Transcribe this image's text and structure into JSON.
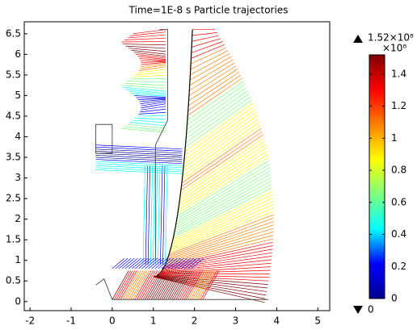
{
  "chart_data": {
    "type": "trajectory",
    "title": "Time=1E-8 s  Particle trajectories",
    "xlim": [
      -2.14,
      5.29
    ],
    "ylim": [
      -0.22,
      6.79
    ],
    "xticks": [
      -2,
      -1,
      0,
      1,
      2,
      3,
      4,
      5
    ],
    "yticks": [
      0,
      0.5,
      1,
      1.5,
      2,
      2.5,
      3,
      3.5,
      4,
      4.5,
      5,
      5.5,
      6,
      6.5
    ],
    "colorbar": {
      "lim": [
        0,
        1.52
      ],
      "ticks": [
        0,
        0.2,
        0.4,
        0.6,
        0.8,
        1,
        1.2,
        1.4
      ],
      "max_label": "1.52×10⁸",
      "unit": "×10⁸",
      "min_label": "0",
      "colormap": [
        "#00008f",
        "#0000ff",
        "#00ffff",
        "#7fff7f",
        "#ffff00",
        "#ff7f00",
        "#ff0000",
        "#7f0000"
      ]
    }
  }
}
